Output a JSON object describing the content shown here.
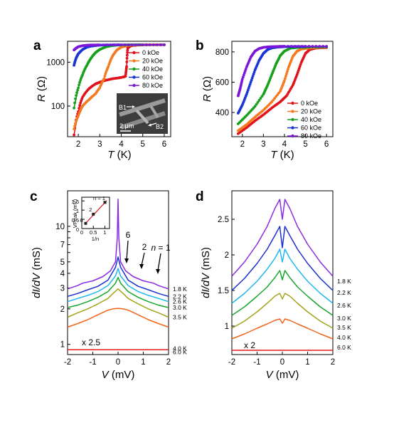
{
  "panels": {
    "a": {
      "letter": "a"
    },
    "b": {
      "letter": "b"
    },
    "c": {
      "letter": "c"
    },
    "d": {
      "letter": "d"
    }
  },
  "legend_fields": [
    "0 kOe",
    "20 kOe",
    "40 kOe",
    "60 kOe",
    "80 kOe"
  ],
  "colors": {
    "0 kOe": "#e0121b",
    "20 kOe": "#f47a20",
    "40 kOe": "#16a01a",
    "60 kOe": "#1a35d6",
    "80 kOe": "#7d16d8",
    "1.8 K": "#8a2be2",
    "2.2 K": "#1a2fd0",
    "2.6 K": "#1fb6f0",
    "3.0 K": "#18a62a",
    "3.5 K": "#a3a31c",
    "4.0 K": "#f06418",
    "6.0 K": "#e51c1c"
  },
  "inset_a": {
    "labels": {
      "b1": "B1",
      "b2": "B2",
      "scale": "2 μm"
    }
  },
  "annotations_c": {
    "n6": "6",
    "n2": "2",
    "n1": "n = 1",
    "mult": "x 2.5"
  },
  "annotations_d": {
    "mult": "x 2"
  },
  "chart_data": [
    {
      "panel": "a",
      "type": "line",
      "xlabel": "T (K)",
      "ylabel": "R (Ω)",
      "yscale": "log",
      "xlim": [
        1.5,
        6.3
      ],
      "ylim": [
        20,
        3000
      ],
      "xticks": [
        2,
        3,
        4,
        5,
        6
      ],
      "yticks": [
        100,
        1000
      ],
      "ytick_labels": [
        "100",
        "1000"
      ],
      "legend_position": "top-right",
      "series": [
        {
          "name": "0 kOe",
          "x": [
            1.8,
            2.0,
            2.2,
            2.5,
            2.8,
            3.0,
            3.3,
            3.6,
            3.9,
            4.1,
            4.2,
            4.25,
            4.3,
            4.4,
            4.5,
            4.7,
            5.0,
            5.5,
            6.0
          ],
          "y": [
            22,
            75,
            160,
            250,
            320,
            350,
            390,
            420,
            440,
            460,
            480,
            800,
            2100,
            2300,
            2400,
            2450,
            2480,
            2500,
            2500
          ]
        },
        {
          "name": "20 kOe",
          "x": [
            1.8,
            2.0,
            2.2,
            2.5,
            2.8,
            3.0,
            3.2,
            3.4,
            3.6,
            3.8,
            4.0,
            4.3,
            4.6,
            5.0,
            5.5,
            6.0
          ],
          "y": [
            30,
            60,
            100,
            140,
            190,
            260,
            420,
            800,
            1400,
            1900,
            2200,
            2400,
            2480,
            2500,
            2500,
            2500
          ]
        },
        {
          "name": "40 kOe",
          "x": [
            1.8,
            2.0,
            2.2,
            2.4,
            2.6,
            2.8,
            3.0,
            3.3,
            3.6,
            4.0,
            4.5,
            5.0,
            6.0
          ],
          "y": [
            90,
            260,
            520,
            850,
            1250,
            1650,
            1950,
            2250,
            2400,
            2480,
            2500,
            2500,
            2500
          ]
        },
        {
          "name": "60 kOe",
          "x": [
            1.8,
            1.9,
            2.0,
            2.2,
            2.4,
            2.6,
            2.8,
            3.0,
            3.4,
            4.0,
            5.0,
            6.0
          ],
          "y": [
            850,
            1250,
            1550,
            1950,
            2200,
            2330,
            2400,
            2450,
            2480,
            2500,
            2500,
            2500
          ]
        },
        {
          "name": "80 kOe",
          "x": [
            1.8,
            1.9,
            2.0,
            2.2,
            2.4,
            2.6,
            3.0,
            4.0,
            5.0,
            6.0
          ],
          "y": [
            1900,
            2100,
            2250,
            2380,
            2440,
            2470,
            2490,
            2500,
            2500,
            2500
          ]
        }
      ]
    },
    {
      "panel": "b",
      "type": "line",
      "xlabel": "T (K)",
      "ylabel": "R (Ω)",
      "xlim": [
        1.5,
        6.3
      ],
      "ylim": [
        240,
        870
      ],
      "xticks": [
        2,
        3,
        4,
        5,
        6
      ],
      "yticks": [
        400,
        600,
        800
      ],
      "legend_position": "bottom-right",
      "series": [
        {
          "name": "0 kOe",
          "x": [
            1.8,
            2.2,
            2.6,
            3.0,
            3.4,
            3.8,
            4.1,
            4.4,
            4.6,
            4.8,
            5.0,
            5.2,
            5.5,
            6.0
          ],
          "y": [
            260,
            300,
            345,
            385,
            430,
            470,
            510,
            580,
            650,
            730,
            790,
            815,
            825,
            828
          ]
        },
        {
          "name": "20 kOe",
          "x": [
            1.8,
            2.2,
            2.6,
            3.0,
            3.4,
            3.8,
            4.0,
            4.2,
            4.4,
            4.6,
            4.8,
            5.1,
            5.5,
            6.0
          ],
          "y": [
            280,
            320,
            370,
            415,
            470,
            540,
            610,
            700,
            770,
            805,
            818,
            825,
            828,
            830
          ]
        },
        {
          "name": "40 kOe",
          "x": [
            1.8,
            2.2,
            2.6,
            3.0,
            3.2,
            3.4,
            3.6,
            3.8,
            4.0,
            4.3,
            4.7,
            5.2,
            6.0
          ],
          "y": [
            325,
            380,
            440,
            520,
            580,
            650,
            720,
            775,
            805,
            825,
            830,
            832,
            832
          ]
        },
        {
          "name": "60 kOe",
          "x": [
            1.8,
            2.0,
            2.2,
            2.4,
            2.6,
            2.8,
            3.0,
            3.2,
            3.4,
            3.7,
            4.0,
            4.5,
            5.0,
            6.0
          ],
          "y": [
            395,
            450,
            520,
            600,
            680,
            745,
            790,
            815,
            826,
            832,
            834,
            835,
            835,
            835
          ]
        },
        {
          "name": "80 kOe",
          "x": [
            1.8,
            1.9,
            2.0,
            2.2,
            2.4,
            2.6,
            2.8,
            3.0,
            3.3,
            3.7,
            4.0,
            5.0,
            6.0
          ],
          "y": [
            510,
            560,
            620,
            700,
            765,
            805,
            822,
            830,
            834,
            836,
            837,
            837,
            837
          ]
        }
      ]
    },
    {
      "panel": "c",
      "type": "line",
      "xlabel": "V (mV)",
      "ylabel": "dI/dV (mS)",
      "yscale": "log",
      "xlim": [
        -2,
        2
      ],
      "ylim": [
        0.82,
        20
      ],
      "xticks": [
        -2,
        -1,
        0,
        1,
        2
      ],
      "yticks": [
        1,
        2,
        3,
        4,
        5,
        6,
        7,
        8,
        9,
        10
      ],
      "ytick_labels": [
        "1",
        "2",
        "3",
        "4",
        "5",
        "",
        "7",
        "",
        "",
        "10"
      ],
      "series": [
        {
          "name": "1.8 K",
          "x": [
            -2,
            -1.6,
            -1.4,
            -1.0,
            -0.6,
            -0.3,
            -0.1,
            -0.03,
            0,
            0.03,
            0.1,
            0.3,
            0.6,
            1.0,
            1.4,
            1.6,
            2
          ],
          "y": [
            2.95,
            3.15,
            3.3,
            3.45,
            3.75,
            4.2,
            5.0,
            8.0,
            17.0,
            8.0,
            5.0,
            4.2,
            3.75,
            3.45,
            3.3,
            3.15,
            2.95
          ]
        },
        {
          "name": "2.2 K",
          "x": [
            -2,
            -1.6,
            -1.2,
            -0.8,
            -0.4,
            -0.1,
            0,
            0.1,
            0.4,
            0.8,
            1.2,
            1.6,
            2
          ],
          "y": [
            2.55,
            2.7,
            2.9,
            3.1,
            3.5,
            4.5,
            5.5,
            4.5,
            3.5,
            3.1,
            2.9,
            2.7,
            2.55
          ]
        },
        {
          "name": "2.6 K",
          "x": [
            -2,
            -1.6,
            -1.2,
            -0.8,
            -0.4,
            -0.1,
            0,
            0.1,
            0.4,
            0.8,
            1.2,
            1.6,
            2
          ],
          "y": [
            2.3,
            2.45,
            2.6,
            2.8,
            3.15,
            3.8,
            4.4,
            3.8,
            3.15,
            2.8,
            2.6,
            2.45,
            2.3
          ]
        },
        {
          "name": "3.0 K",
          "x": [
            -2,
            -1.6,
            -1.2,
            -0.8,
            -0.4,
            -0.1,
            0,
            0.1,
            0.4,
            0.8,
            1.2,
            1.6,
            2
          ],
          "y": [
            2.05,
            2.15,
            2.3,
            2.5,
            2.8,
            3.3,
            3.7,
            3.3,
            2.8,
            2.5,
            2.3,
            2.15,
            2.05
          ]
        },
        {
          "name": "3.5 K",
          "x": [
            -2,
            -1.6,
            -1.2,
            -0.8,
            -0.4,
            -0.2,
            0,
            0.2,
            0.4,
            0.8,
            1.2,
            1.6,
            2
          ],
          "y": [
            1.7,
            1.85,
            2.0,
            2.2,
            2.45,
            2.7,
            2.95,
            2.7,
            2.45,
            2.2,
            2.0,
            1.85,
            1.7
          ]
        },
        {
          "name": "4.0 K",
          "x": [
            -2,
            -1.6,
            -1.2,
            -0.8,
            -0.4,
            -0.2,
            0,
            0.2,
            0.4,
            0.8,
            1.2,
            1.6,
            2
          ],
          "y": [
            1.4,
            1.5,
            1.62,
            1.78,
            1.95,
            2.0,
            2.02,
            2.0,
            1.95,
            1.78,
            1.62,
            1.5,
            1.4
          ]
        },
        {
          "name": "6.0 K",
          "x": [
            -2,
            2
          ],
          "y": [
            0.9,
            0.9
          ]
        }
      ]
    },
    {
      "panel": "c-inset",
      "type": "scatter",
      "xlabel": "1/n",
      "ylabel": "VPeak (mV)",
      "xlim": [
        0,
        1.2
      ],
      "ylim": [
        0,
        1.7
      ],
      "xticks": [
        0.0,
        0.5,
        1.0
      ],
      "yticks": [
        0.0,
        0.5,
        1.0,
        1.5
      ],
      "series": [
        {
          "name": "",
          "x": [
            0.1667,
            0.5,
            1.0
          ],
          "y": [
            0.28,
            0.78,
            1.42
          ],
          "labels": [
            "6",
            "2",
            "n = 1"
          ]
        }
      ]
    },
    {
      "panel": "d",
      "type": "line",
      "xlabel": "V (mV)",
      "ylabel": "dI/dV (mS)",
      "xlim": [
        -2,
        2
      ],
      "ylim": [
        0.6,
        2.9
      ],
      "xticks": [
        -2,
        -1,
        0,
        1,
        2
      ],
      "yticks": [
        1.0,
        1.5,
        2.0,
        2.5
      ],
      "series": [
        {
          "name": "1.8 K",
          "x": [
            -2,
            -1.5,
            -1.0,
            -0.6,
            -0.3,
            -0.1,
            0,
            0.1,
            0.3,
            0.6,
            1.0,
            1.5,
            2
          ],
          "y": [
            1.7,
            1.9,
            2.15,
            2.4,
            2.65,
            2.78,
            2.5,
            2.78,
            2.65,
            2.4,
            2.15,
            1.9,
            1.7
          ]
        },
        {
          "name": "2.2 K",
          "x": [
            -2,
            -1.5,
            -1.0,
            -0.6,
            -0.3,
            -0.1,
            0,
            0.1,
            0.3,
            0.6,
            1.0,
            1.5,
            2
          ],
          "y": [
            1.5,
            1.67,
            1.88,
            2.08,
            2.27,
            2.4,
            2.1,
            2.4,
            2.27,
            2.08,
            1.88,
            1.67,
            1.5
          ]
        },
        {
          "name": "2.6 K",
          "x": [
            -2,
            -1.5,
            -1.0,
            -0.6,
            -0.3,
            -0.1,
            0,
            0.1,
            0.3,
            0.6,
            1.0,
            1.5,
            2
          ],
          "y": [
            1.32,
            1.46,
            1.63,
            1.8,
            1.95,
            2.08,
            1.9,
            2.08,
            1.95,
            1.8,
            1.63,
            1.46,
            1.32
          ]
        },
        {
          "name": "3.0 K",
          "x": [
            -2,
            -1.5,
            -1.0,
            -0.6,
            -0.3,
            -0.1,
            0,
            0.1,
            0.3,
            0.6,
            1.0,
            1.5,
            2
          ],
          "y": [
            1.15,
            1.27,
            1.42,
            1.55,
            1.68,
            1.78,
            1.65,
            1.78,
            1.68,
            1.55,
            1.42,
            1.27,
            1.15
          ]
        },
        {
          "name": "3.5 K",
          "x": [
            -2,
            -1.5,
            -1.0,
            -0.6,
            -0.3,
            -0.1,
            0,
            0.1,
            0.3,
            0.6,
            1.0,
            1.5,
            2
          ],
          "y": [
            0.97,
            1.07,
            1.2,
            1.32,
            1.42,
            1.46,
            1.38,
            1.46,
            1.42,
            1.32,
            1.2,
            1.07,
            0.97
          ]
        },
        {
          "name": "4.0 K",
          "x": [
            -2,
            -1.5,
            -1.0,
            -0.6,
            -0.3,
            -0.1,
            0,
            0.1,
            0.3,
            0.6,
            1.0,
            1.5,
            2
          ],
          "y": [
            0.82,
            0.89,
            0.97,
            1.03,
            1.08,
            1.1,
            1.04,
            1.1,
            1.08,
            1.03,
            0.97,
            0.89,
            0.82
          ]
        },
        {
          "name": "6.0 K",
          "x": [
            -2,
            2
          ],
          "y": [
            0.66,
            0.66
          ]
        }
      ]
    }
  ]
}
